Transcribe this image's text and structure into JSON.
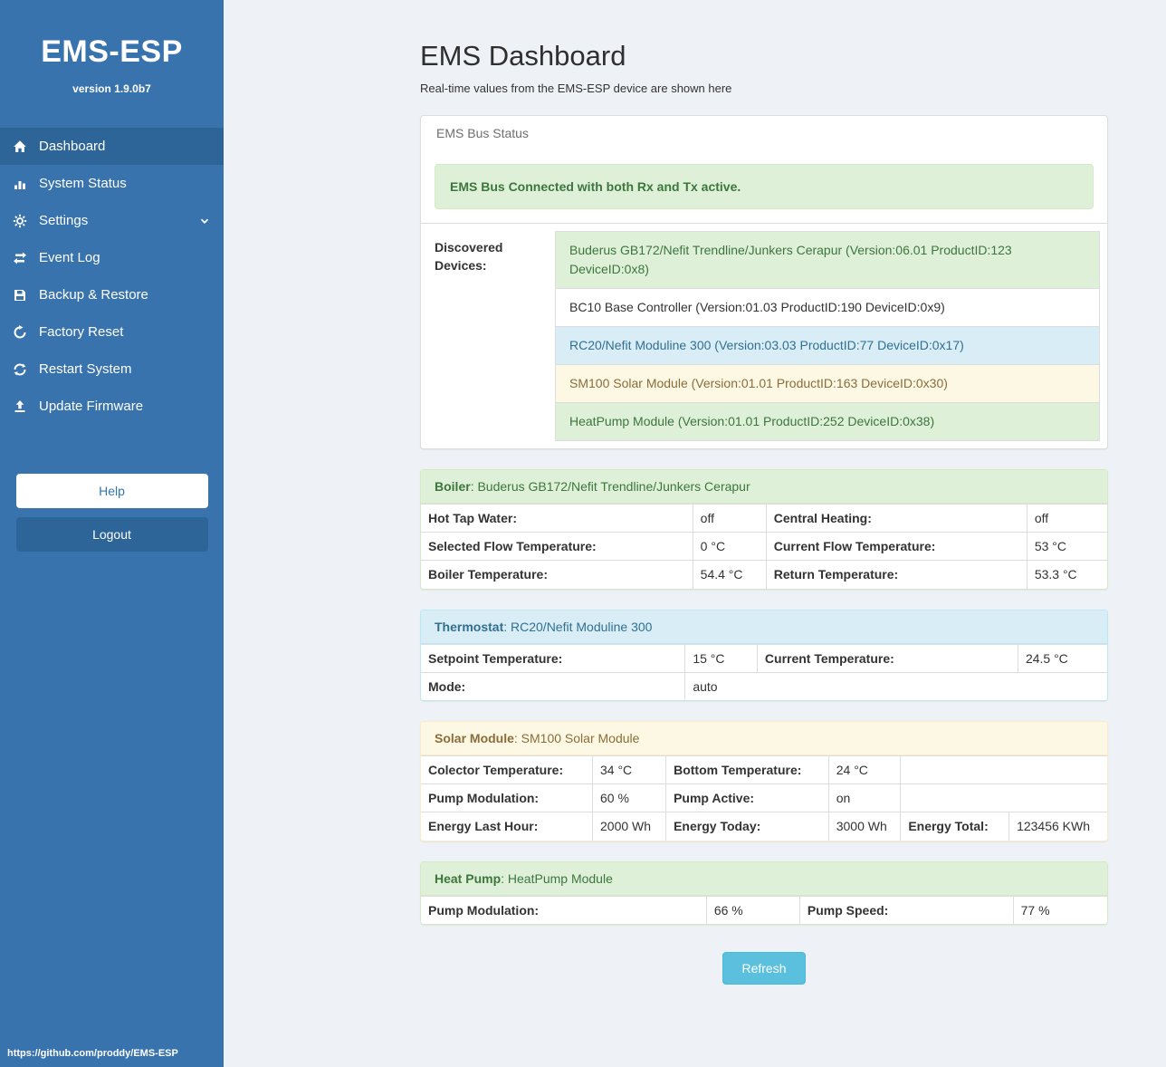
{
  "colors": {
    "sidebar": "#3873ae",
    "sidebar_active": "#2d6598",
    "success_bg": "#dff0d8",
    "success_border": "#d6e9c6",
    "success_text": "#3c763d",
    "info_bg": "#d9edf7",
    "info_border": "#bce8f1",
    "info_text": "#31708f",
    "warning_bg": "#fcf8e3",
    "warning_border": "#faebcc",
    "warning_text": "#8a6d3b",
    "refresh_button": "#5bc0de"
  },
  "sidebar": {
    "brand": "EMS-ESP",
    "version": "version 1.9.0b7",
    "items": [
      {
        "label": "Dashboard",
        "icon": "home-icon",
        "active": true
      },
      {
        "label": "System Status",
        "icon": "bar-chart-icon",
        "active": false
      },
      {
        "label": "Settings",
        "icon": "gear-icon",
        "active": false,
        "chevron": true
      },
      {
        "label": "Event Log",
        "icon": "exchange-icon",
        "active": false
      },
      {
        "label": "Backup & Restore",
        "icon": "save-icon",
        "active": false
      },
      {
        "label": "Factory Reset",
        "icon": "undo-icon",
        "active": false
      },
      {
        "label": "Restart System",
        "icon": "refresh-icon",
        "active": false
      },
      {
        "label": "Update Firmware",
        "icon": "upload-icon",
        "active": false
      }
    ],
    "help_label": "Help",
    "logout_label": "Logout",
    "footer_link": "https://github.com/proddy/EMS-ESP"
  },
  "main": {
    "title": "EMS Dashboard",
    "subtitle": "Real-time values from the EMS-ESP device are shown here",
    "bus_panel": {
      "header": "EMS Bus Status",
      "alert": "EMS Bus Connected with both Rx and Tx active.",
      "devices_label": "Discovered Devices:",
      "devices": [
        {
          "text": "Buderus GB172/Nefit Trendline/Junkers Cerapur (Version:06.01 ProductID:123 DeviceID:0x8)",
          "type": "success"
        },
        {
          "text": "BC10 Base Controller (Version:01.03 ProductID:190 DeviceID:0x9)",
          "type": "default"
        },
        {
          "text": "RC20/Nefit Moduline 300 (Version:03.03 ProductID:77 DeviceID:0x17)",
          "type": "info"
        },
        {
          "text": "SM100 Solar Module (Version:01.01 ProductID:163 DeviceID:0x30)",
          "type": "warning"
        },
        {
          "text": "HeatPump Module (Version:01.01 ProductID:252 DeviceID:0x38)",
          "type": "success"
        }
      ]
    },
    "panels": [
      {
        "id": "boiler",
        "theme": "success",
        "title": "Boiler",
        "subtitle": ": Buderus GB172/Nefit Trendline/Junkers Cerapur",
        "rows": [
          [
            {
              "t": "Hot Tap Water:",
              "h": true
            },
            {
              "t": "off"
            },
            {
              "t": "Central Heating:",
              "h": true
            },
            {
              "t": "off"
            }
          ],
          [
            {
              "t": "Selected Flow Temperature:",
              "h": true
            },
            {
              "t": "0 °C"
            },
            {
              "t": "Current Flow Temperature:",
              "h": true
            },
            {
              "t": "53 °C"
            }
          ],
          [
            {
              "t": "Boiler Temperature:",
              "h": true
            },
            {
              "t": "54.4 °C"
            },
            {
              "t": "Return Temperature:",
              "h": true
            },
            {
              "t": "53.3 °C"
            }
          ]
        ]
      },
      {
        "id": "thermostat",
        "theme": "info",
        "title": "Thermostat",
        "subtitle": ": RC20/Nefit Moduline 300",
        "rows": [
          [
            {
              "t": "Setpoint Temperature:",
              "h": true
            },
            {
              "t": "15 °C"
            },
            {
              "t": "Current Temperature:",
              "h": true
            },
            {
              "t": "24.5 °C"
            }
          ],
          [
            {
              "t": "Mode:",
              "h": true
            },
            {
              "t": "auto",
              "span": 3
            }
          ]
        ]
      },
      {
        "id": "solar",
        "theme": "warning",
        "title": "Solar Module",
        "subtitle": ": SM100 Solar Module",
        "rows": [
          [
            {
              "t": "Colector Temperature:",
              "h": true
            },
            {
              "t": "34 °C"
            },
            {
              "t": "Bottom Temperature:",
              "h": true
            },
            {
              "t": "24 °C"
            },
            {
              "t": "",
              "span": 2
            }
          ],
          [
            {
              "t": "Pump Modulation:",
              "h": true
            },
            {
              "t": "60 %"
            },
            {
              "t": "Pump Active:",
              "h": true
            },
            {
              "t": "on"
            },
            {
              "t": "",
              "span": 2
            }
          ],
          [
            {
              "t": "Energy Last Hour:",
              "h": true
            },
            {
              "t": "2000 Wh"
            },
            {
              "t": "Energy Today:",
              "h": true
            },
            {
              "t": "3000 Wh"
            },
            {
              "t": "Energy Total:",
              "h": true
            },
            {
              "t": "123456 KWh"
            }
          ]
        ]
      },
      {
        "id": "heatpump",
        "theme": "success",
        "title": "Heat Pump",
        "subtitle": ": HeatPump Module",
        "rows": [
          [
            {
              "t": "Pump Modulation:",
              "h": true
            },
            {
              "t": "66 %"
            },
            {
              "t": "Pump Speed:",
              "h": true
            },
            {
              "t": "77 %"
            }
          ]
        ]
      }
    ],
    "refresh_label": "Refresh"
  }
}
